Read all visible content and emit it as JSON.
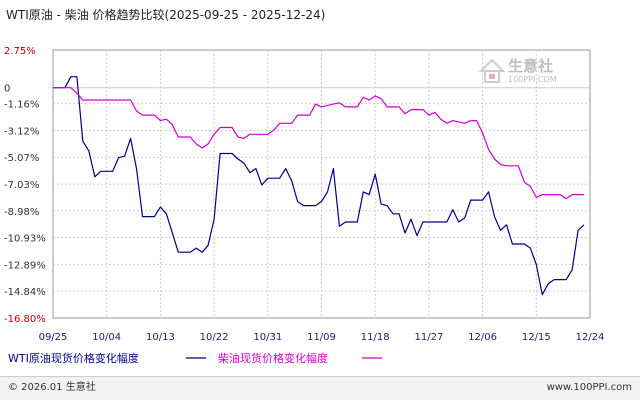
{
  "chart_data": {
    "type": "line",
    "title": "WTI原油 - 柴油 价格趋势比较(2025-09-25 - 2025-12-24)",
    "y_ticks": [
      "2.75%",
      "0",
      "-1.16%",
      "-3.12%",
      "-5.07%",
      "-7.03%",
      "-8.98%",
      "-10.93%",
      "-12.89%",
      "-14.84%",
      "-16.80%"
    ],
    "y_tick_values": [
      2.75,
      0,
      -1.16,
      -3.12,
      -5.07,
      -7.03,
      -8.98,
      -10.93,
      -12.89,
      -14.84,
      -16.8
    ],
    "ylim": [
      -16.8,
      2.75
    ],
    "x_ticks": [
      "09/25",
      "10/04",
      "10/13",
      "10/22",
      "10/31",
      "11/09",
      "11/18",
      "11/27",
      "12/06",
      "12/15",
      "12/24"
    ],
    "x_tick_days": [
      0,
      9,
      18,
      27,
      36,
      45,
      54,
      63,
      72,
      81,
      90
    ],
    "xlim": [
      0,
      90
    ],
    "grid": true,
    "legend_position": "bottom-left",
    "series": [
      {
        "name": "WTI原油现货价格变化幅度",
        "color": "#00008b",
        "points": [
          [
            0,
            0
          ],
          [
            2,
            0
          ],
          [
            3,
            0.8
          ],
          [
            4,
            0.8
          ],
          [
            5,
            -3.9
          ],
          [
            6,
            -4.6
          ],
          [
            7,
            -6.5
          ],
          [
            8,
            -6.1
          ],
          [
            10,
            -6.1
          ],
          [
            11,
            -5.1
          ],
          [
            12,
            -5.0
          ],
          [
            13,
            -3.7
          ],
          [
            14,
            -5.9
          ],
          [
            15,
            -9.4
          ],
          [
            17,
            -9.4
          ],
          [
            18,
            -8.7
          ],
          [
            19,
            -9.2
          ],
          [
            21,
            -12.0
          ],
          [
            23,
            -12.0
          ],
          [
            24,
            -11.7
          ],
          [
            25,
            -12.0
          ],
          [
            26,
            -11.5
          ],
          [
            27,
            -9.6
          ],
          [
            28,
            -4.8
          ],
          [
            30,
            -4.8
          ],
          [
            31,
            -5.2
          ],
          [
            32,
            -5.5
          ],
          [
            33,
            -6.2
          ],
          [
            34,
            -5.9
          ],
          [
            35,
            -7.1
          ],
          [
            36,
            -6.6
          ],
          [
            38,
            -6.6
          ],
          [
            39,
            -5.9
          ],
          [
            40,
            -6.8
          ],
          [
            41,
            -8.3
          ],
          [
            42,
            -8.6
          ],
          [
            44,
            -8.6
          ],
          [
            45,
            -8.3
          ],
          [
            46,
            -7.6
          ],
          [
            47,
            -5.9
          ],
          [
            48,
            -10.1
          ],
          [
            49,
            -9.8
          ],
          [
            51,
            -9.8
          ],
          [
            52,
            -7.6
          ],
          [
            53,
            -7.8
          ],
          [
            54,
            -6.3
          ],
          [
            55,
            -8.5
          ],
          [
            56,
            -8.6
          ],
          [
            57,
            -9.2
          ],
          [
            58,
            -9.2
          ],
          [
            59,
            -10.6
          ],
          [
            60,
            -9.6
          ],
          [
            61,
            -10.8
          ],
          [
            62,
            -9.8
          ],
          [
            65,
            -9.8
          ],
          [
            66,
            -9.8
          ],
          [
            67,
            -8.9
          ],
          [
            68,
            -9.8
          ],
          [
            69,
            -9.5
          ],
          [
            70,
            -8.2
          ],
          [
            72,
            -8.2
          ],
          [
            73,
            -7.6
          ],
          [
            74,
            -9.4
          ],
          [
            75,
            -10.4
          ],
          [
            76,
            -10.0
          ],
          [
            77,
            -11.4
          ],
          [
            79,
            -11.4
          ],
          [
            80,
            -11.7
          ],
          [
            81,
            -12.9
          ],
          [
            82,
            -15.1
          ],
          [
            83,
            -14.3
          ],
          [
            84,
            -14.0
          ],
          [
            86,
            -14.0
          ],
          [
            87,
            -13.3
          ],
          [
            88,
            -10.4
          ],
          [
            89,
            -10.0
          ]
        ]
      },
      {
        "name": "柴油现货价格变化幅度",
        "color": "#d000d0",
        "points": [
          [
            0,
            0
          ],
          [
            3,
            0
          ],
          [
            4,
            -0.4
          ],
          [
            5,
            -0.9
          ],
          [
            13,
            -0.9
          ],
          [
            14,
            -1.7
          ],
          [
            15,
            -2.0
          ],
          [
            17,
            -2.0
          ],
          [
            18,
            -2.4
          ],
          [
            19,
            -2.3
          ],
          [
            20,
            -2.7
          ],
          [
            21,
            -3.6
          ],
          [
            22,
            -3.6
          ],
          [
            23,
            -3.6
          ],
          [
            24,
            -4.1
          ],
          [
            25,
            -4.4
          ],
          [
            26,
            -4.1
          ],
          [
            27,
            -3.4
          ],
          [
            28,
            -2.9
          ],
          [
            30,
            -2.9
          ],
          [
            31,
            -3.6
          ],
          [
            32,
            -3.7
          ],
          [
            33,
            -3.4
          ],
          [
            36,
            -3.4
          ],
          [
            37,
            -3.1
          ],
          [
            38,
            -2.6
          ],
          [
            39,
            -2.6
          ],
          [
            40,
            -2.6
          ],
          [
            41,
            -2.0
          ],
          [
            43,
            -2.0
          ],
          [
            44,
            -1.2
          ],
          [
            45,
            -1.4
          ],
          [
            47,
            -1.2
          ],
          [
            48,
            -1.1
          ],
          [
            49,
            -1.4
          ],
          [
            51,
            -1.4
          ],
          [
            52,
            -0.7
          ],
          [
            53,
            -0.9
          ],
          [
            54,
            -0.6
          ],
          [
            55,
            -0.8
          ],
          [
            56,
            -1.4
          ],
          [
            58,
            -1.4
          ],
          [
            59,
            -1.9
          ],
          [
            60,
            -1.6
          ],
          [
            62,
            -1.6
          ],
          [
            63,
            -2.0
          ],
          [
            64,
            -1.8
          ],
          [
            65,
            -2.3
          ],
          [
            66,
            -2.6
          ],
          [
            67,
            -2.4
          ],
          [
            69,
            -2.6
          ],
          [
            70,
            -2.4
          ],
          [
            71,
            -2.4
          ],
          [
            72,
            -3.3
          ],
          [
            73,
            -4.5
          ],
          [
            74,
            -5.2
          ],
          [
            75,
            -5.6
          ],
          [
            76,
            -5.7
          ],
          [
            78,
            -5.7
          ],
          [
            79,
            -6.9
          ],
          [
            80,
            -7.2
          ],
          [
            81,
            -8.0
          ],
          [
            82,
            -7.8
          ],
          [
            85,
            -7.8
          ],
          [
            86,
            -8.1
          ],
          [
            87,
            -7.8
          ],
          [
            89,
            -7.8
          ]
        ]
      }
    ]
  },
  "watermark": {
    "name": "生意社",
    "url": "100PPI.COM"
  },
  "legend": {
    "wti_label": "WTI原油现货价格变化幅度",
    "diesel_label": "柴油现货价格变化幅度"
  },
  "footer": {
    "copyright": "© 2026.01 生意社",
    "site": "www.100PPI.com"
  }
}
